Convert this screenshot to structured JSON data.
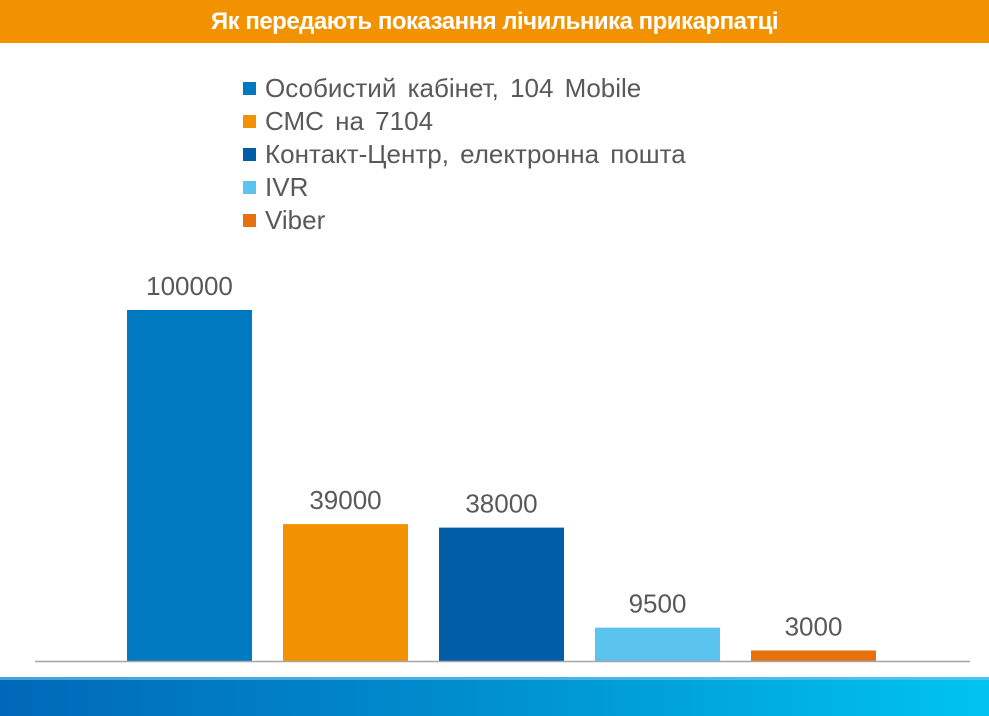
{
  "chart_data": {
    "type": "bar",
    "title": "Як передають показання лічильника прикарпатці",
    "categories": [
      "Особистий кабінет, 104 Mobile",
      "СМС на 7104",
      "Контакт-Центр, електронна пошта",
      "IVR",
      "Viber"
    ],
    "values": [
      100000,
      39000,
      38000,
      9500,
      3000
    ],
    "data_labels": [
      "100000",
      "39000",
      "38000",
      "9500",
      "3000"
    ],
    "colors": [
      "#0079C1",
      "#F39200",
      "#005DA8",
      "#5BC4EE",
      "#E8710F"
    ],
    "ylim": [
      0,
      100000
    ],
    "grid": false,
    "legend_placement": "top-center",
    "xlabel": "",
    "ylabel": ""
  },
  "colors": {
    "title_bar": "#F39200",
    "text": "#595959",
    "axis": "#A6A6A6"
  }
}
